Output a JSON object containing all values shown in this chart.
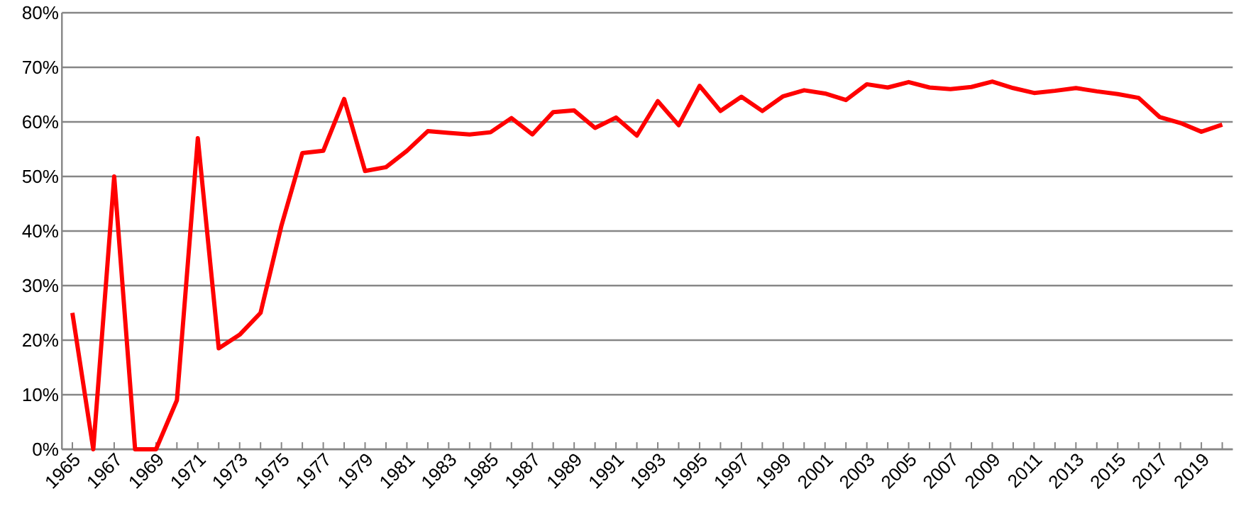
{
  "chart_data": {
    "type": "line",
    "categories": [
      "1965",
      null,
      "1967",
      null,
      "1969",
      null,
      "1971",
      null,
      "1973",
      null,
      "1975",
      null,
      "1977",
      null,
      "1979",
      null,
      "1981",
      null,
      "1983",
      null,
      "1985",
      null,
      "1987",
      null,
      "1989",
      null,
      "1991",
      null,
      "1993",
      null,
      "1995",
      null,
      "1997",
      null,
      "1999",
      null,
      "2001",
      null,
      "2003",
      null,
      "2005",
      null,
      "2007",
      null,
      "2009",
      null,
      "2011",
      null,
      "2013",
      null,
      "2015",
      null,
      "2017",
      null,
      "2019",
      null
    ],
    "series": [
      {
        "color": "#ff0000",
        "values": [
          25,
          0,
          50,
          0,
          0,
          9,
          57,
          18.5,
          21,
          25,
          41,
          54.3,
          54.7,
          64.2,
          51,
          51.7,
          54.7,
          58.3,
          58,
          57.7,
          58.1,
          60.7,
          57.7,
          61.8,
          62.1,
          58.9,
          60.8,
          57.5,
          63.8,
          59.4,
          66.6,
          62,
          64.6,
          62,
          64.7,
          65.8,
          65.2,
          64,
          66.9,
          66.3,
          67.3,
          66.3,
          66,
          66.4,
          67.4,
          66.2,
          65.3,
          65.7,
          66.2,
          65.6,
          65.1,
          64.4,
          60.9,
          59.8,
          58.2,
          59.5
        ]
      }
    ],
    "ylim": [
      0,
      80
    ],
    "yticks": [
      {
        "value": 0,
        "label": "0%"
      },
      {
        "value": 10,
        "label": "10%"
      },
      {
        "value": 20,
        "label": "20%"
      },
      {
        "value": 30,
        "label": "30%"
      },
      {
        "value": 40,
        "label": "40%"
      },
      {
        "value": 50,
        "label": "50%"
      },
      {
        "value": 60,
        "label": "60%"
      },
      {
        "value": 70,
        "label": "70%"
      },
      {
        "value": 80,
        "label": "80%"
      }
    ],
    "grid": "y",
    "marker": "none",
    "line_style": "solid"
  }
}
